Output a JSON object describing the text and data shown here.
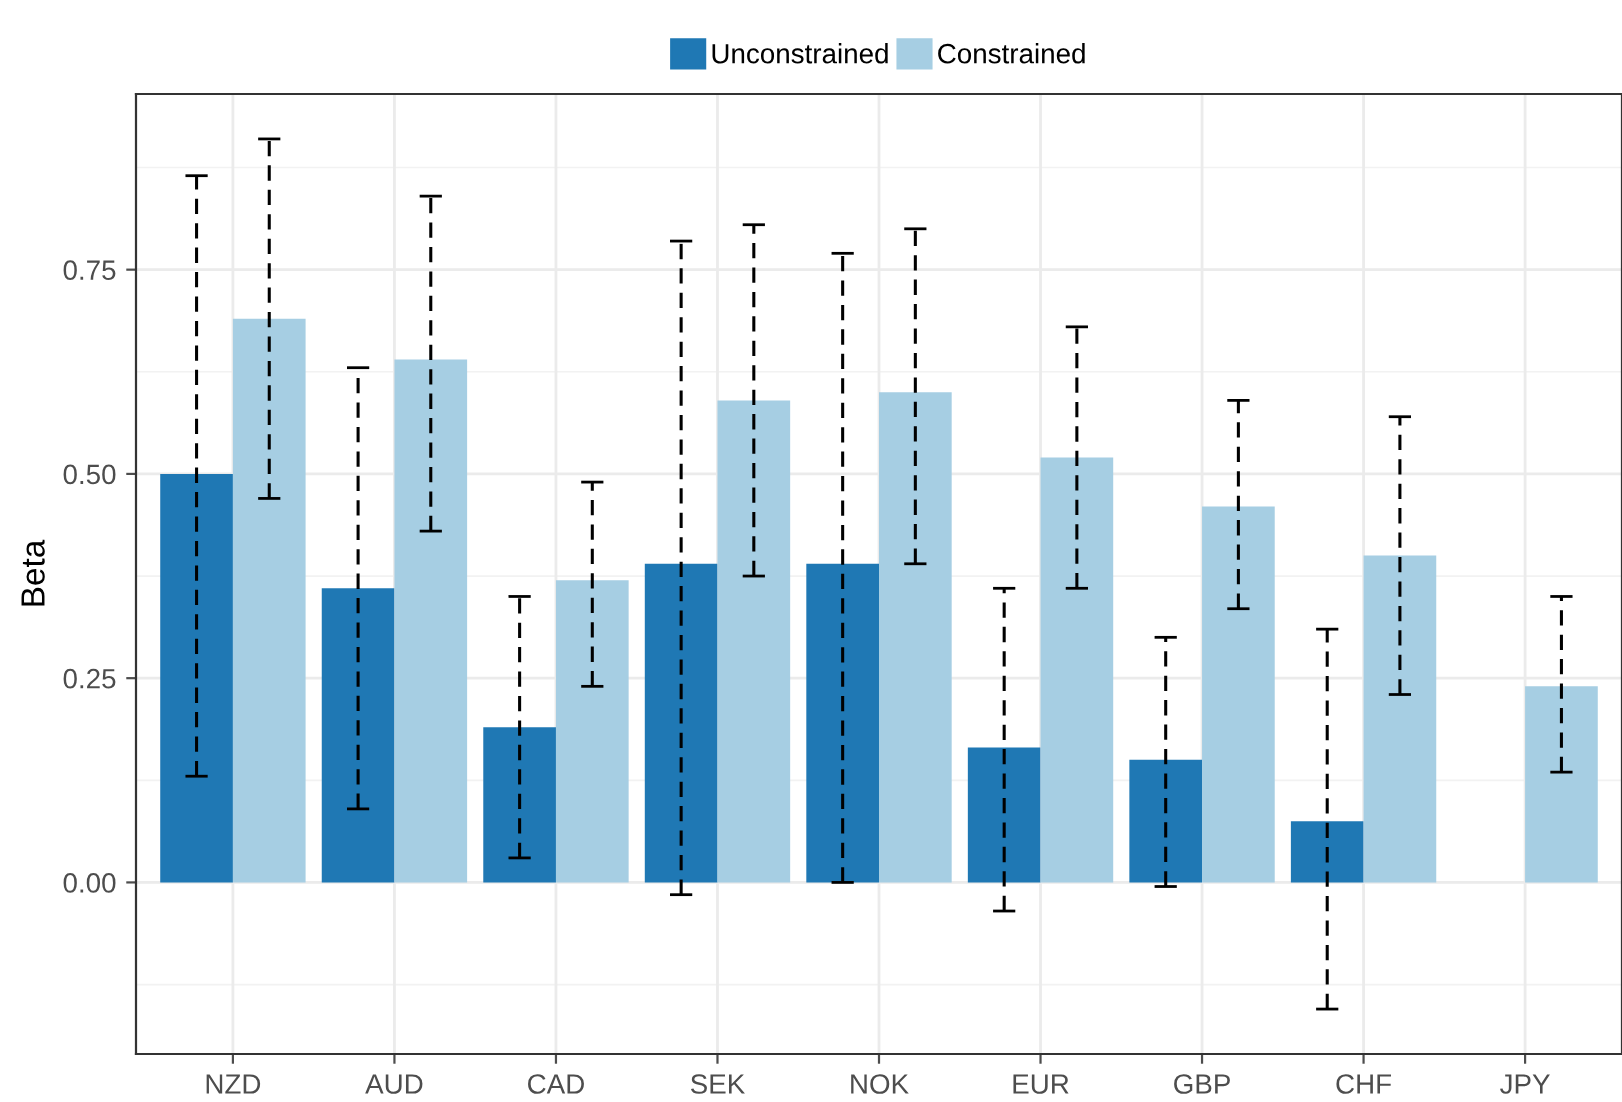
{
  "chart_data": {
    "type": "bar",
    "ylabel": "Beta",
    "categories": [
      "NZD",
      "AUD",
      "CAD",
      "SEK",
      "NOK",
      "EUR",
      "GBP",
      "CHF",
      "JPY"
    ],
    "series": [
      {
        "name": "Unconstrained",
        "color": "#1f78b4",
        "values": [
          0.5,
          0.36,
          0.19,
          0.39,
          0.39,
          0.165,
          0.15,
          0.075,
          null
        ],
        "errors": [
          [
            0.13,
            0.865
          ],
          [
            0.09,
            0.63
          ],
          [
            0.03,
            0.35
          ],
          [
            -0.015,
            0.785
          ],
          [
            0.0,
            0.77
          ],
          [
            -0.035,
            0.36
          ],
          [
            -0.005,
            0.3
          ],
          [
            -0.155,
            0.31
          ],
          null
        ]
      },
      {
        "name": "Constrained",
        "color": "#a6cee3",
        "values": [
          0.69,
          0.64,
          0.37,
          0.59,
          0.6,
          0.52,
          0.46,
          0.4,
          0.24
        ],
        "errors": [
          [
            0.47,
            0.91
          ],
          [
            0.43,
            0.84
          ],
          [
            0.24,
            0.49
          ],
          [
            0.375,
            0.805
          ],
          [
            0.39,
            0.8
          ],
          [
            0.36,
            0.68
          ],
          [
            0.335,
            0.59
          ],
          [
            0.23,
            0.57
          ],
          [
            0.135,
            0.35
          ]
        ]
      }
    ],
    "ylim": [
      -0.21,
      0.965
    ],
    "yticks": [
      {
        "value": 0,
        "label": "0.00"
      },
      {
        "value": 0.25,
        "label": "0.25"
      },
      {
        "value": 0.5,
        "label": "0.50"
      },
      {
        "value": 0.75,
        "label": "0.75"
      }
    ],
    "grid": true,
    "legend": "top"
  }
}
